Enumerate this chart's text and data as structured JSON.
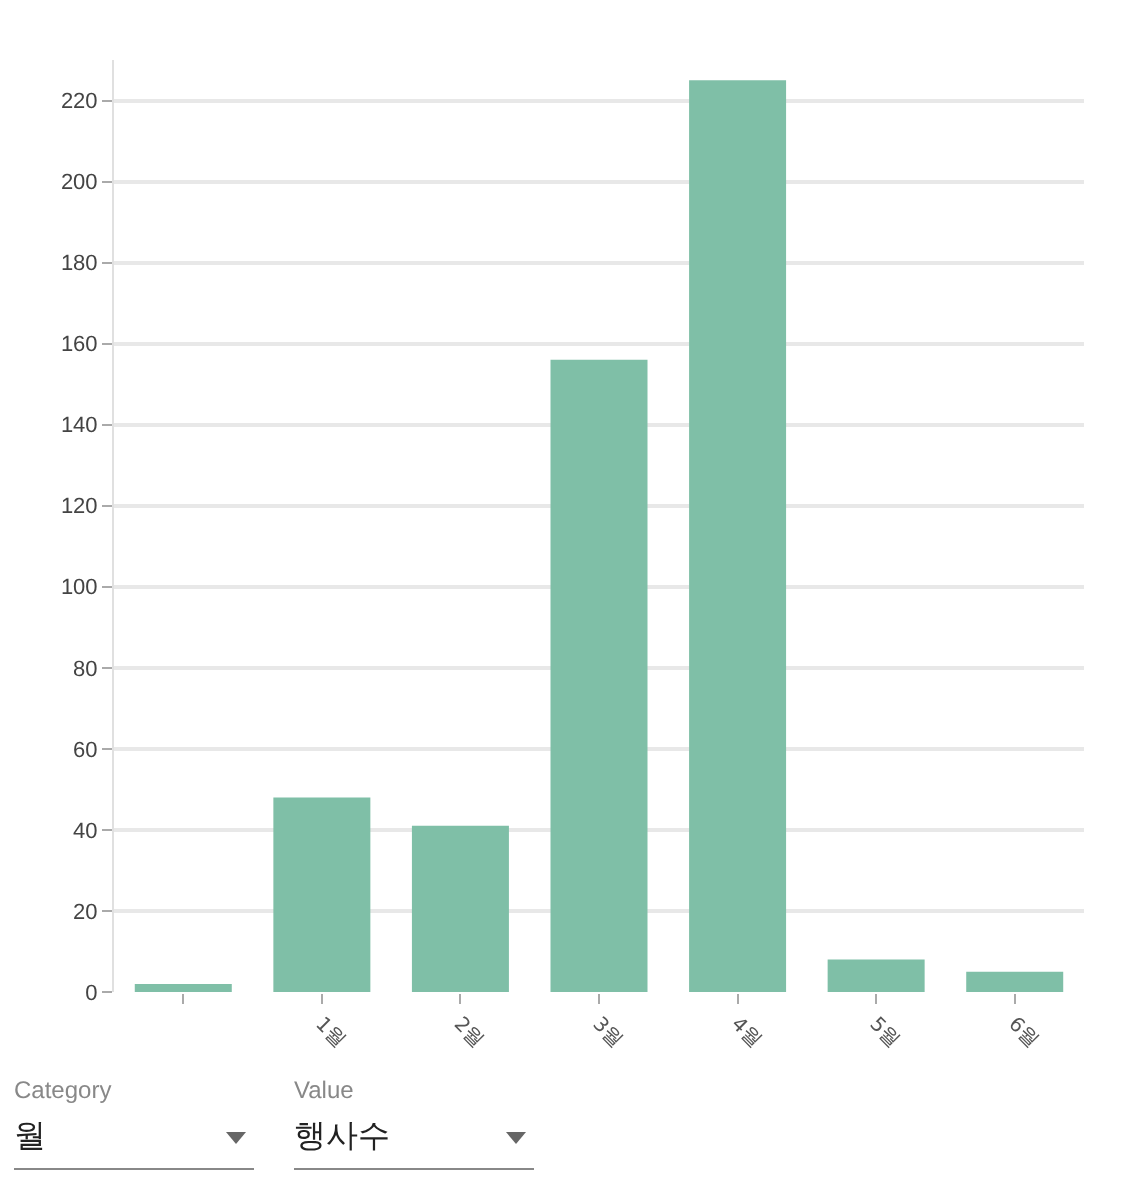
{
  "chart_data": {
    "type": "bar",
    "categories": [
      null,
      "1월",
      "2월",
      "3월",
      "4월",
      "5월",
      "6월"
    ],
    "values": [
      2,
      48,
      41,
      156,
      225,
      8,
      5
    ],
    "color": "#7fbfa7",
    "ylim": [
      0,
      230
    ],
    "yticks": [
      0,
      20,
      40,
      60,
      80,
      100,
      120,
      140,
      160,
      180,
      200,
      220
    ],
    "grid": "y",
    "annotations": [
      "Category",
      "월",
      "Value",
      "행사수"
    ]
  }
}
